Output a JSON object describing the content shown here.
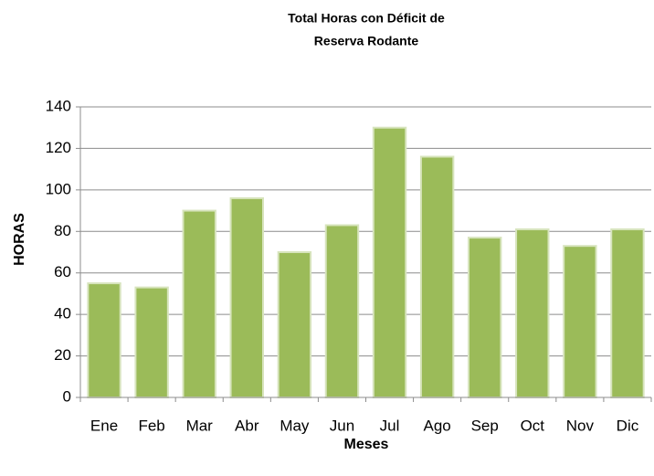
{
  "chart_data": {
    "type": "bar",
    "title": [
      "Total Horas con Déficit de",
      "Reserva Rodante"
    ],
    "x_label": "Meses",
    "y_label": "HORAS",
    "categories": [
      "Ene",
      "Feb",
      "Mar",
      "Abr",
      "May",
      "Jun",
      "Jul",
      "Ago",
      "Sep",
      "Oct",
      "Nov",
      "Dic"
    ],
    "values": [
      55,
      53,
      90,
      96,
      70,
      83,
      130,
      116,
      77,
      81,
      73,
      81
    ],
    "color": "#9bbb59",
    "ylim": [
      0,
      140
    ],
    "yticks": [
      0,
      20,
      40,
      60,
      80,
      100,
      120,
      140
    ],
    "grid": true
  }
}
